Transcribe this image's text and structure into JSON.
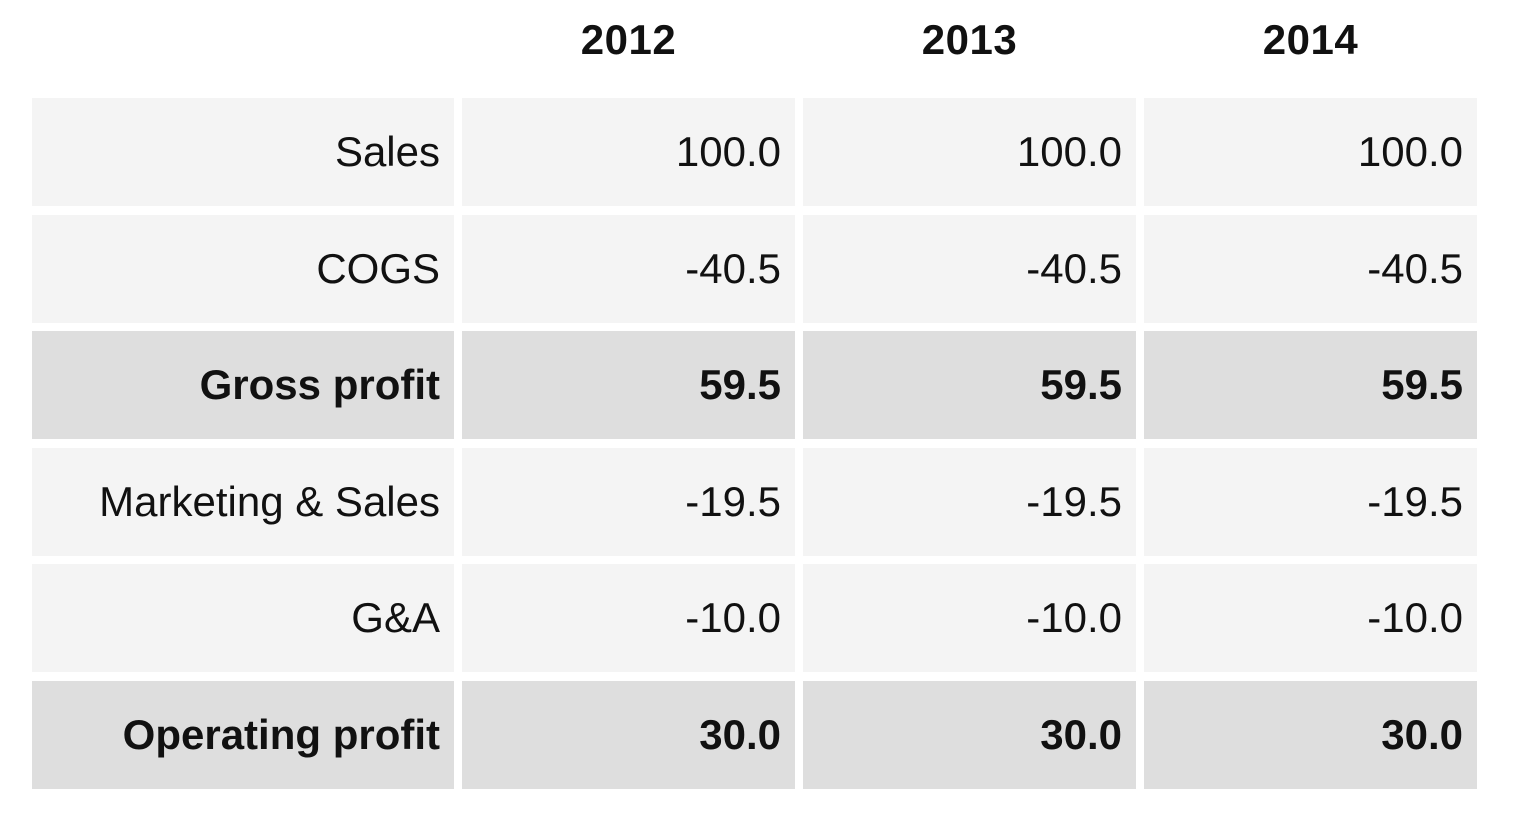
{
  "chart_data": {
    "type": "table",
    "columns": [
      "2012",
      "2013",
      "2014"
    ],
    "rows": [
      {
        "label": "Sales",
        "values": [
          "100.0",
          "100.0",
          "100.0"
        ],
        "bold": false
      },
      {
        "label": "COGS",
        "values": [
          "-40.5",
          "-40.5",
          "-40.5"
        ],
        "bold": false
      },
      {
        "label": "Gross profit",
        "values": [
          "59.5",
          "59.5",
          "59.5"
        ],
        "bold": true
      },
      {
        "label": "Marketing & Sales",
        "values": [
          "-19.5",
          "-19.5",
          "-19.5"
        ],
        "bold": false
      },
      {
        "label": "G&A",
        "values": [
          "-10.0",
          "-10.0",
          "-10.0"
        ],
        "bold": false
      },
      {
        "label": "Operating profit",
        "values": [
          "30.0",
          "30.0",
          "30.0"
        ],
        "bold": true
      }
    ]
  },
  "colors": {
    "row_background": "#f4f4f4",
    "total_row_background": "#dedede",
    "text": "#111111"
  }
}
